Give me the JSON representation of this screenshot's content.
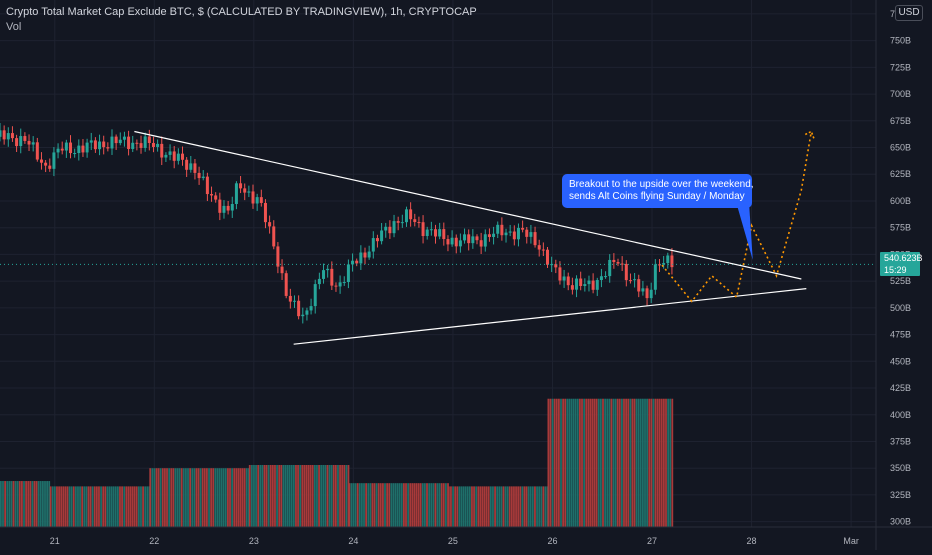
{
  "header": {
    "title": "Crypto Total Market Cap Exclude BTC, $ (CALCULATED BY TRADINGVIEW), 1h, CRYPTOCAP",
    "vol_label": "Vol",
    "currency": "USD"
  },
  "price_badge": {
    "price": "540.623B",
    "countdown": "15:29"
  },
  "annotation": {
    "line1": "Breakout to the upside over the weekend,",
    "line2": "sends Alt Coins flying Sunday / Monday"
  },
  "colors": {
    "background": "#131722",
    "up": "#26a69a",
    "down": "#ef5350",
    "vol_up": "#1f6f6a",
    "vol_down": "#a83a3a",
    "trendline": "#ffffff",
    "projection": "#ff9800",
    "annotation": "#2962ff"
  },
  "chart_data": {
    "type": "candlestick",
    "x_tick_labels": [
      "21",
      "22",
      "23",
      "24",
      "25",
      "26",
      "27",
      "28",
      "Mar"
    ],
    "x_ticks": [
      21,
      22,
      23,
      24,
      25,
      26,
      27,
      28,
      29
    ],
    "x_range": [
      20.45,
      29.25
    ],
    "y_tick_labels": [
      "300B",
      "325B",
      "350B",
      "375B",
      "400B",
      "425B",
      "450B",
      "475B",
      "500B",
      "525B",
      "550B",
      "575B",
      "600B",
      "625B",
      "650B",
      "675B",
      "700B",
      "725B",
      "750B",
      "775B"
    ],
    "y_ticks": [
      300,
      325,
      350,
      375,
      400,
      425,
      450,
      475,
      500,
      525,
      550,
      575,
      600,
      625,
      650,
      675,
      700,
      725,
      750,
      775
    ],
    "y_range": [
      295,
      788
    ],
    "last_price": 540.623,
    "price_path": [
      [
        20.45,
        660
      ],
      [
        20.7,
        658
      ],
      [
        20.9,
        632
      ],
      [
        21.05,
        648
      ],
      [
        21.3,
        650
      ],
      [
        21.55,
        655
      ],
      [
        21.8,
        655
      ],
      [
        22.0,
        652
      ],
      [
        22.2,
        640
      ],
      [
        22.4,
        632
      ],
      [
        22.55,
        605
      ],
      [
        22.75,
        590
      ],
      [
        22.85,
        615
      ],
      [
        23.05,
        600
      ],
      [
        23.2,
        560
      ],
      [
        23.35,
        505
      ],
      [
        23.5,
        492
      ],
      [
        23.7,
        535
      ],
      [
        23.85,
        520
      ],
      [
        24.0,
        542
      ],
      [
        24.2,
        560
      ],
      [
        24.4,
        580
      ],
      [
        24.55,
        585
      ],
      [
        24.7,
        575
      ],
      [
        24.9,
        565
      ],
      [
        25.1,
        562
      ],
      [
        25.3,
        565
      ],
      [
        25.5,
        572
      ],
      [
        25.7,
        570
      ],
      [
        25.85,
        562
      ],
      [
        26.0,
        535
      ],
      [
        26.2,
        522
      ],
      [
        26.35,
        520
      ],
      [
        26.5,
        530
      ],
      [
        26.65,
        545
      ],
      [
        26.8,
        525
      ],
      [
        26.95,
        508
      ],
      [
        27.05,
        545
      ],
      [
        27.2,
        540
      ]
    ],
    "trendlines": [
      {
        "name": "upper",
        "points": [
          [
            21.8,
            665
          ],
          [
            28.5,
            527
          ]
        ]
      },
      {
        "name": "lower",
        "points": [
          [
            23.4,
            466
          ],
          [
            28.55,
            518
          ]
        ]
      }
    ],
    "projection": [
      [
        27.1,
        540
      ],
      [
        27.4,
        506
      ],
      [
        27.6,
        530
      ],
      [
        27.85,
        510
      ],
      [
        28.0,
        577
      ],
      [
        28.25,
        530
      ],
      [
        28.5,
        610
      ],
      [
        28.6,
        665
      ]
    ],
    "volume": [
      {
        "from": 20.45,
        "to": 20.95,
        "value": 338
      },
      {
        "from": 20.95,
        "to": 21.95,
        "value": 333
      },
      {
        "from": 21.95,
        "to": 22.95,
        "value": 350
      },
      {
        "from": 22.95,
        "to": 23.95,
        "value": 353
      },
      {
        "from": 23.95,
        "to": 24.95,
        "value": 336
      },
      {
        "from": 24.95,
        "to": 25.95,
        "value": 333
      },
      {
        "from": 25.95,
        "to": 27.2,
        "value": 415
      }
    ]
  }
}
